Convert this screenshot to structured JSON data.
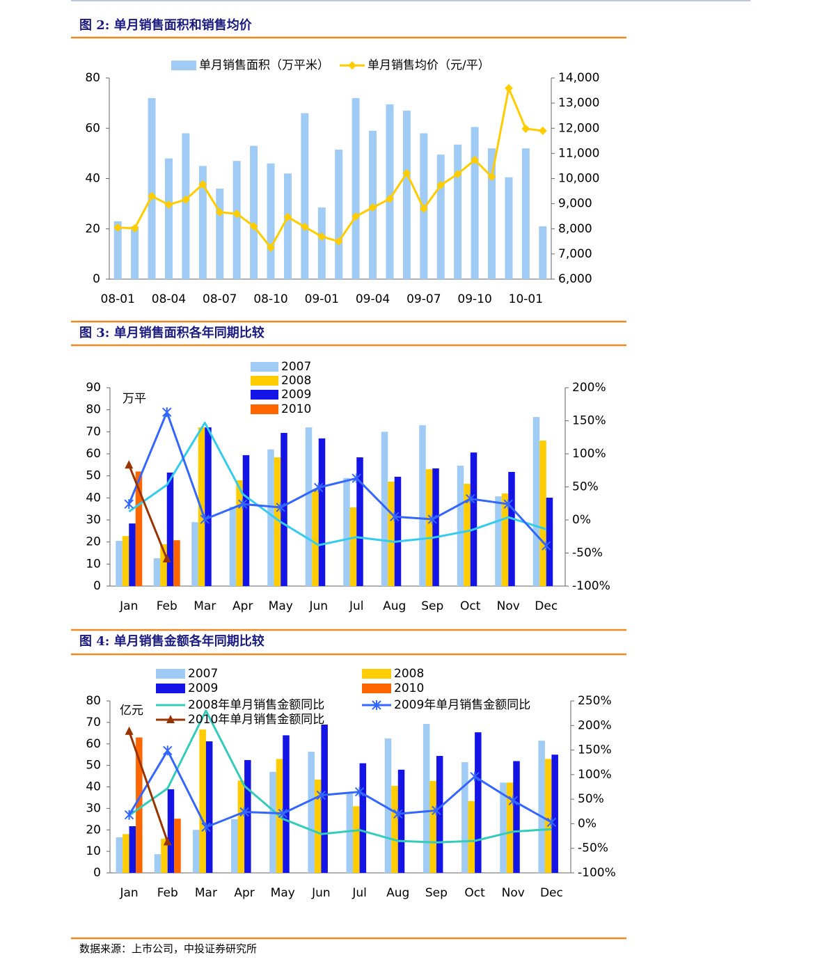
{
  "chart_data": [
    {
      "type": "combo",
      "title": "图 2:  单月销售面积和销售均价",
      "categories": [
        "08-01",
        null,
        null,
        "08-04",
        null,
        null,
        "08-07",
        null,
        null,
        "08-10",
        null,
        null,
        "09-01",
        null,
        null,
        "09-04",
        null,
        null,
        "09-07",
        null,
        null,
        "09-10",
        null,
        null,
        "10-01",
        null
      ],
      "series": [
        {
          "name": "单月销售面积（万平米）",
          "type": "bar",
          "color": "#9fcbf5",
          "values": [
            23,
            21,
            72,
            48,
            58,
            45,
            36,
            47,
            53,
            46,
            42,
            66,
            28.5,
            51.5,
            72,
            59,
            69.5,
            67,
            58,
            49.5,
            53.5,
            60.5,
            52,
            40.5,
            52,
            21
          ]
        },
        {
          "name": "单月销售均价（元/平）",
          "type": "line",
          "axis": "y2",
          "marker": "diamond",
          "color": "#ffcc00",
          "values": [
            8050,
            8020,
            9300,
            8960,
            9160,
            9770,
            8660,
            8600,
            8100,
            7250,
            8470,
            8080,
            7690,
            7500,
            8490,
            8850,
            9190,
            10210,
            8800,
            9740,
            10180,
            10740,
            10070,
            13590,
            11980,
            11900
          ]
        }
      ],
      "ylim": [
        0,
        80
      ],
      "yticks": [
        0,
        20,
        40,
        60,
        80
      ],
      "y2lim": [
        6000,
        14000
      ],
      "y2ticks": [
        {
          "value": 6000,
          "label": "6,000"
        },
        {
          "value": 7000,
          "label": "7,000"
        },
        {
          "value": 8000,
          "label": "8,000"
        },
        {
          "value": 9000,
          "label": "9,000"
        },
        {
          "value": 10000,
          "label": "10,000"
        },
        {
          "value": 11000,
          "label": "11,000"
        },
        {
          "value": 12000,
          "label": "12,000"
        },
        {
          "value": 13000,
          "label": "13,000"
        },
        {
          "value": 14000,
          "label": "14,000"
        }
      ]
    },
    {
      "type": "combo",
      "title": "图 3:  单月销售面积各年同期比较",
      "y_label": "万平",
      "categories": [
        "Jan",
        "Feb",
        "Mar",
        "Apr",
        "May",
        "Jun",
        "Jul",
        "Aug",
        "Sep",
        "Oct",
        "Nov",
        "Dec"
      ],
      "series": [
        {
          "name": "2007",
          "type": "bar",
          "color": "#9fcbf5",
          "values": [
            20.5,
            12.6,
            29,
            36,
            62,
            72,
            49,
            70,
            73,
            54.6,
            40.7,
            76.7
          ]
        },
        {
          "name": "2008",
          "type": "bar",
          "color": "#ffcc00",
          "values": [
            22.7,
            19,
            72,
            48,
            58.4,
            44,
            35.7,
            47.4,
            53,
            46.4,
            42,
            66
          ]
        },
        {
          "name": "2009",
          "type": "bar",
          "color": "#1414e6",
          "values": [
            28.4,
            51.5,
            72,
            59.4,
            69.5,
            67,
            58.4,
            49.6,
            53.4,
            60.6,
            51.8,
            40.1
          ]
        },
        {
          "name": "2010",
          "type": "bar",
          "color": "#ff6600",
          "values": [
            52,
            20.8,
            null,
            null,
            null,
            null,
            null,
            null,
            null,
            null,
            null,
            null
          ]
        },
        {
          "type": "line",
          "axis": "y2",
          "color": "#33ccee",
          "values": [
            12.6,
            53,
            147,
            39,
            -3,
            -38,
            -26,
            -33,
            -27,
            -16,
            4,
            -14
          ]
        },
        {
          "type": "line",
          "axis": "y2",
          "marker": "x",
          "color": "#3366ff",
          "values": [
            24,
            163,
            1,
            24,
            19,
            49,
            63,
            5,
            1,
            32,
            24,
            -39
          ]
        },
        {
          "type": "line",
          "axis": "y2",
          "marker": "triangle",
          "color": "#993300",
          "values": [
            83,
            -59,
            null,
            null,
            null,
            null,
            null,
            null,
            null,
            null,
            null,
            null
          ]
        }
      ],
      "ylim": [
        0,
        90
      ],
      "yticks": [
        0,
        10,
        20,
        30,
        40,
        50,
        60,
        70,
        80,
        90
      ],
      "y2lim": [
        -100,
        200
      ],
      "y2ticks": [
        {
          "value": -100,
          "label": "-100%"
        },
        {
          "value": -50,
          "label": "-50%"
        },
        {
          "value": 0,
          "label": "0%"
        },
        {
          "value": 50,
          "label": "50%"
        },
        {
          "value": 100,
          "label": "100%"
        },
        {
          "value": 150,
          "label": "150%"
        },
        {
          "value": 200,
          "label": "200%"
        }
      ]
    },
    {
      "type": "combo",
      "title": "图 4:  单月销售金额各年同期比较",
      "y_label": "亿元",
      "categories": [
        "Jan",
        "Feb",
        "Mar",
        "Apr",
        "May",
        "Jun",
        "Jul",
        "Aug",
        "Sep",
        "Oct",
        "Nov",
        "Dec"
      ],
      "series": [
        {
          "name": "2007",
          "type": "bar",
          "color": "#9fcbf5",
          "values": [
            16.5,
            8.7,
            20,
            25,
            47,
            56.4,
            37,
            62.5,
            69.3,
            51.5,
            42,
            61.5
          ]
        },
        {
          "name": "2008",
          "type": "bar",
          "color": "#ffcc00",
          "values": [
            18,
            15.9,
            66.7,
            43,
            53,
            43.4,
            31,
            40.5,
            42.8,
            33.4,
            42,
            53
          ]
        },
        {
          "name": "2009",
          "type": "bar",
          "color": "#1414e6",
          "values": [
            21.7,
            38.9,
            61.2,
            52.5,
            64,
            69,
            51,
            48,
            54.4,
            65.4,
            52,
            55
          ]
        },
        {
          "name": "2010",
          "type": "bar",
          "color": "#ff6600",
          "values": [
            63,
            25.2,
            null,
            null,
            null,
            null,
            null,
            null,
            null,
            null,
            null,
            null
          ]
        },
        {
          "name": "2008年单月销售金额同比",
          "type": "line",
          "axis": "y2",
          "color": "#33ccbb",
          "values": [
            17,
            72,
            230,
            77,
            10,
            -21,
            -13,
            -35,
            -38,
            -35,
            -16,
            -11
          ]
        },
        {
          "name": "2009年单月销售金额同比",
          "type": "line",
          "axis": "y2",
          "marker": "x",
          "color": "#3366ff",
          "values": [
            18,
            149,
            -7,
            24,
            21,
            58,
            65,
            20,
            27,
            96,
            47,
            3
          ]
        },
        {
          "name": "2010年单月销售金额同比",
          "type": "line",
          "axis": "y2",
          "marker": "triangle",
          "color": "#993300",
          "values": [
            188,
            -37,
            null,
            null,
            null,
            null,
            null,
            null,
            null,
            null,
            null,
            null
          ]
        }
      ],
      "ylim": [
        0,
        80
      ],
      "yticks": [
        0,
        10,
        20,
        30,
        40,
        50,
        60,
        70,
        80
      ],
      "y2lim": [
        -100,
        250
      ],
      "y2ticks": [
        {
          "value": -100,
          "label": "-100%"
        },
        {
          "value": -50,
          "label": "-50%"
        },
        {
          "value": 0,
          "label": "0%"
        },
        {
          "value": 50,
          "label": "50%"
        },
        {
          "value": 100,
          "label": "100%"
        },
        {
          "value": 150,
          "label": "150%"
        },
        {
          "value": 200,
          "label": "200%"
        },
        {
          "value": 250,
          "label": "250%"
        }
      ]
    }
  ],
  "source": "数据来源：上市公司，中投证券研究所"
}
